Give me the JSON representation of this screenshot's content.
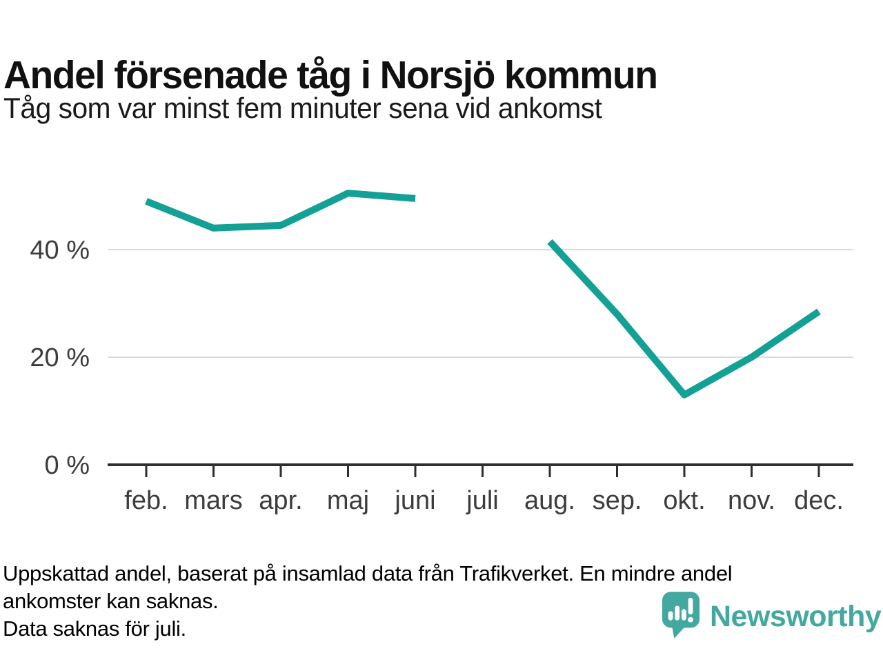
{
  "chart_data": {
    "type": "line",
    "title": "Andel försenade tåg i Norsjö kommun",
    "subtitle": "Tåg som var minst fem minuter sena vid ankomst",
    "unit": "percent",
    "categories": [
      "feb.",
      "mars",
      "apr.",
      "maj",
      "juni",
      "juli",
      "aug.",
      "sep.",
      "okt.",
      "nov.",
      "dec."
    ],
    "series": [
      {
        "name": "Andel försenade tåg",
        "values": [
          49,
          44,
          44.5,
          50.5,
          49.5,
          null,
          41.5,
          28,
          13,
          20,
          28.5
        ]
      }
    ],
    "missing_categories": [
      "juli"
    ],
    "yticks": [
      {
        "value": 0,
        "label": "0 %"
      },
      {
        "value": 20,
        "label": "20 %"
      },
      {
        "value": 40,
        "label": "40 %"
      }
    ],
    "ylim": [
      0,
      55
    ],
    "grid": "horizontal-only",
    "legend": "none"
  },
  "footer": {
    "note_lines": [
      "Uppskattad andel, baserat på insamlad data från Trafikverket. En mindre andel",
      "ankomster kan saknas.",
      "Data saknas för juli."
    ],
    "brand": "Newsworthy"
  },
  "colors": {
    "line": "#13A095",
    "grid": "#DBDBDB",
    "axis": "#2E2E2E",
    "axis_label": "#3C3C3C",
    "text": "#111111",
    "muted": "#56575B",
    "logo": "#43A89F"
  }
}
